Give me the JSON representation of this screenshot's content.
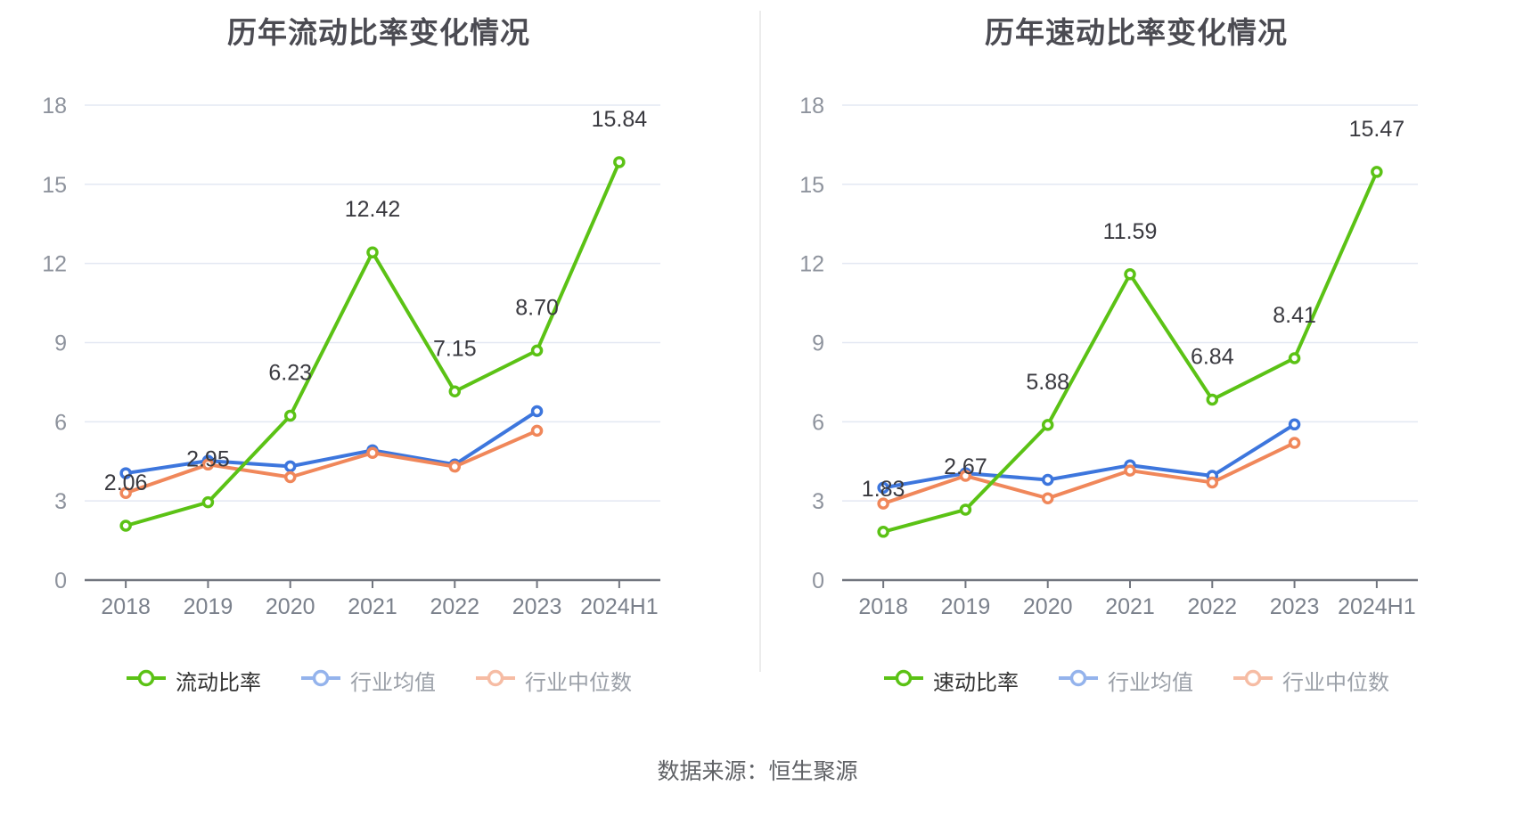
{
  "source_note": "数据来源：恒生聚源",
  "ui_colors": {
    "grid": "#e3e8f3",
    "axis": "#71757e",
    "y_tick_label": "#8e939d",
    "x_tick_label": "#7b818c",
    "value_label": "#3a3a40",
    "title_text": "#4b4b52",
    "legend_main_text": "#333333",
    "legend_muted_text": "#9ba0a8",
    "divider": "#ececec",
    "source_text": "#606266",
    "marker_fill": "#ffffff",
    "series_green": "#5bc215",
    "series_blue": "#3d76dd",
    "series_orange": "#f0875a"
  },
  "chart_data": [
    {
      "type": "line",
      "title": "历年流动比率变化情况",
      "categories": [
        "2018",
        "2019",
        "2020",
        "2021",
        "2022",
        "2023",
        "2024H1"
      ],
      "ylim": [
        0,
        18
      ],
      "yticks": [
        0,
        3,
        6,
        9,
        12,
        15,
        18
      ],
      "grid": true,
      "legend_position": "bottom",
      "series": [
        {
          "name": "流动比率",
          "color": "#5bc215",
          "main": true,
          "values": [
            2.06,
            2.95,
            6.23,
            12.42,
            7.15,
            8.7,
            15.84
          ],
          "labels": [
            "2.06",
            "2.95",
            "6.23",
            "12.42",
            "7.15",
            "8.70",
            "15.84"
          ]
        },
        {
          "name": "行业均值",
          "color": "#3d76dd",
          "main": false,
          "values": [
            4.05,
            4.52,
            4.31,
            4.92,
            4.38,
            6.4
          ]
        },
        {
          "name": "行业中位数",
          "color": "#f0875a",
          "main": false,
          "values": [
            3.3,
            4.38,
            3.9,
            4.82,
            4.3,
            5.66
          ]
        }
      ]
    },
    {
      "type": "line",
      "title": "历年速动比率变化情况",
      "categories": [
        "2018",
        "2019",
        "2020",
        "2021",
        "2022",
        "2023",
        "2024H1"
      ],
      "ylim": [
        0,
        18
      ],
      "yticks": [
        0,
        3,
        6,
        9,
        12,
        15,
        18
      ],
      "grid": true,
      "legend_position": "bottom",
      "series": [
        {
          "name": "速动比率",
          "color": "#5bc215",
          "main": true,
          "values": [
            1.83,
            2.67,
            5.88,
            11.59,
            6.84,
            8.41,
            15.47
          ],
          "labels": [
            "1.83",
            "2.67",
            "5.88",
            "11.59",
            "6.84",
            "8.41",
            "15.47"
          ]
        },
        {
          "name": "行业均值",
          "color": "#3d76dd",
          "main": false,
          "values": [
            3.5,
            4.05,
            3.8,
            4.35,
            3.95,
            5.9
          ]
        },
        {
          "name": "行业中位数",
          "color": "#f0875a",
          "main": false,
          "values": [
            2.9,
            3.95,
            3.1,
            4.15,
            3.7,
            5.2
          ]
        }
      ]
    }
  ]
}
